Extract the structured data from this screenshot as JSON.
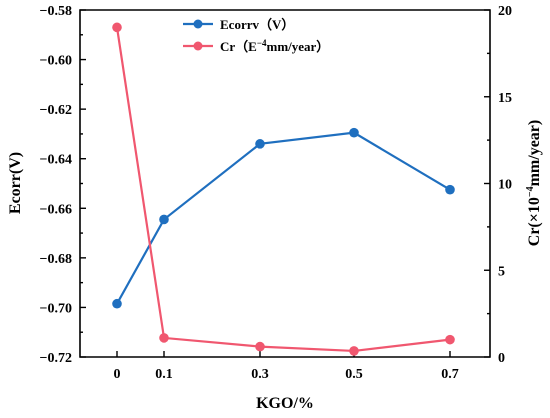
{
  "chart_data": {
    "type": "line",
    "x": [
      0,
      0.1,
      0.3,
      0.5,
      0.7
    ],
    "x_tick_labels": [
      "0",
      "0.1",
      "0.3",
      "0.5",
      "0.7"
    ],
    "xlabel": "KGO/%",
    "ylabel_left": "Ecorr(V)",
    "ylabel_right_prefix": "Cr(×10",
    "ylabel_right_sup": "−4",
    "ylabel_right_suffix": "mm/year)",
    "ylim_left": [
      -0.72,
      -0.58
    ],
    "yticks_left": [
      "-0.72",
      "-0.70",
      "-0.68",
      "-0.66",
      "-0.64",
      "-0.62",
      "-0.60",
      "-0.58"
    ],
    "ylim_right": [
      0,
      20
    ],
    "yticks_right": [
      "0",
      "5",
      "10",
      "15",
      "20"
    ],
    "grid": false,
    "legend_position": "top-center",
    "series": [
      {
        "name": "Ecorrv（V）",
        "axis": "left",
        "color": "#1f6fbf",
        "values": [
          -0.6985,
          -0.6645,
          -0.634,
          -0.6295,
          -0.6525
        ]
      },
      {
        "name_prefix": "Cr（E",
        "name_sup": "−4",
        "name_suffix": "mm/year）",
        "axis": "right",
        "color": "#f0576f",
        "values": [
          19.0,
          1.1,
          0.6,
          0.35,
          1.0
        ]
      }
    ]
  }
}
